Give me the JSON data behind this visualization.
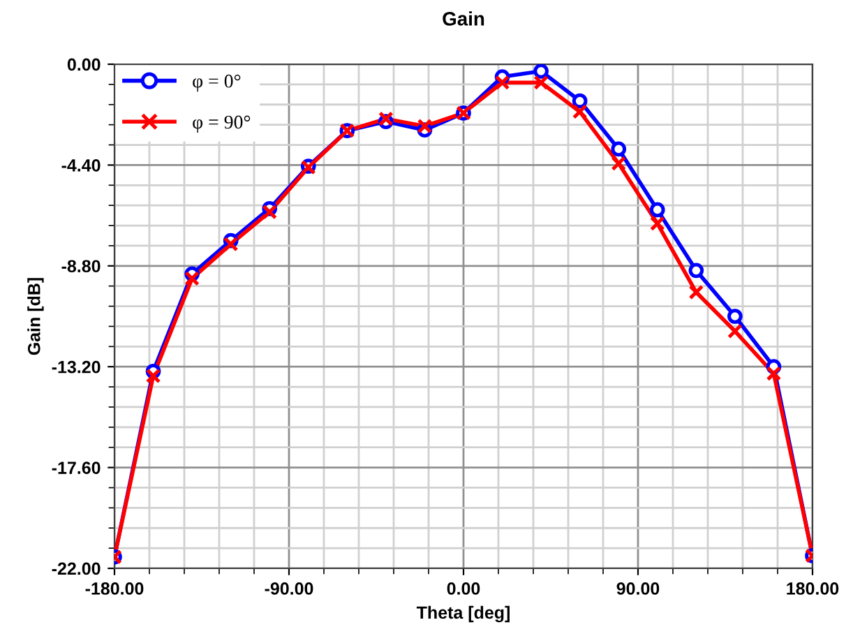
{
  "chart_data": {
    "type": "line",
    "title": "Gain",
    "xlabel": "Theta [deg]",
    "ylabel": "Gain [dB]",
    "x": [
      -180,
      -160,
      -140,
      -120,
      -100,
      -80,
      -60,
      -40,
      -20,
      0,
      20,
      40,
      60,
      80,
      100,
      120,
      140,
      160,
      180
    ],
    "series": [
      {
        "name": "φ = 0°",
        "color": "#0000ff",
        "marker": "circle",
        "values": [
          -21.5,
          -13.4,
          -9.15,
          -7.7,
          -6.3,
          -4.45,
          -2.9,
          -2.5,
          -2.87,
          -2.13,
          -0.55,
          -0.3,
          -1.6,
          -3.7,
          -6.35,
          -9.0,
          -11.0,
          -13.2,
          -21.45
        ]
      },
      {
        "name": "φ = 90°",
        "color": "#ff0000",
        "marker": "cross",
        "values": [
          -21.5,
          -13.6,
          -9.35,
          -7.85,
          -6.45,
          -4.5,
          -2.9,
          -2.38,
          -2.7,
          -2.13,
          -0.8,
          -0.8,
          -2.07,
          -4.33,
          -6.95,
          -9.95,
          -11.65,
          -13.5,
          -21.45
        ]
      }
    ],
    "xlim": [
      -180,
      180
    ],
    "xticks": [
      {
        "value": -180,
        "label": "-180.00"
      },
      {
        "value": -90,
        "label": "-90.00"
      },
      {
        "value": 0,
        "label": "0.00"
      },
      {
        "value": 90,
        "label": "90.00"
      },
      {
        "value": 180,
        "label": "180.00"
      }
    ],
    "ylim": [
      -22,
      0
    ],
    "yticks": [
      {
        "value": -22,
        "label": "-22.00"
      },
      {
        "value": -17.6,
        "label": "-17.60"
      },
      {
        "value": -13.2,
        "label": "-13.20"
      },
      {
        "value": -8.8,
        "label": "-8.80"
      },
      {
        "value": -4.4,
        "label": "-4.40"
      },
      {
        "value": 0,
        "label": "0.00"
      }
    ],
    "grid": true,
    "legend": "top left",
    "line_style": "solid"
  }
}
